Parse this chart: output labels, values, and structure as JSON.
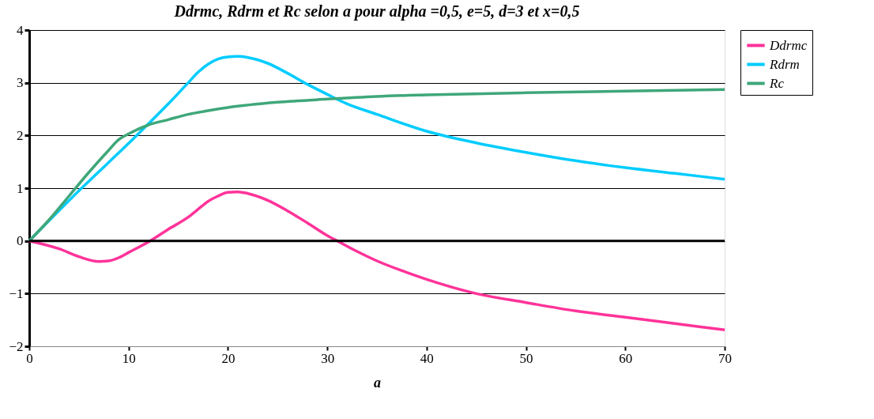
{
  "chart_data": {
    "type": "line",
    "title": "Ddrmc, Rdrm et Rc selon a pour alpha =0,5, e=5, d=3 et x=0,5",
    "xlabel": "a",
    "xlim": [
      0,
      70
    ],
    "xticks": [
      0,
      10,
      20,
      30,
      40,
      50,
      60,
      70
    ],
    "ylim": [
      -2,
      4
    ],
    "yticks": [
      -2,
      -1,
      0,
      1,
      2,
      3,
      4
    ],
    "grid": "y",
    "legend": "right",
    "series": [
      {
        "name": "Ddrmc",
        "color": "#ff3399",
        "x": [
          0,
          3,
          5,
          7,
          8,
          9,
          10,
          12,
          14,
          16,
          17,
          18,
          19,
          20,
          21,
          22,
          24,
          26,
          28,
          30,
          31,
          33,
          35,
          38,
          40,
          45,
          50,
          55,
          60,
          65,
          70
        ],
        "values": [
          0,
          -0.15,
          -0.3,
          -0.39,
          -0.38,
          -0.32,
          -0.22,
          -0.02,
          0.22,
          0.45,
          0.6,
          0.75,
          0.85,
          0.92,
          0.93,
          0.9,
          0.77,
          0.57,
          0.34,
          0.1,
          0,
          -0.2,
          -0.38,
          -0.6,
          -0.73,
          -1.0,
          -1.17,
          -1.33,
          -1.45,
          -1.57,
          -1.69
        ]
      },
      {
        "name": "Rdrm",
        "color": "#00ccff",
        "x": [
          0,
          5,
          10,
          14,
          16,
          17,
          18,
          19,
          20,
          21,
          22,
          24,
          26,
          28,
          30,
          32,
          35,
          40,
          45,
          50,
          55,
          60,
          65,
          70
        ],
        "values": [
          0,
          0.95,
          1.85,
          2.6,
          3.0,
          3.2,
          3.35,
          3.45,
          3.49,
          3.5,
          3.48,
          3.37,
          3.18,
          2.97,
          2.78,
          2.6,
          2.4,
          2.08,
          1.86,
          1.68,
          1.52,
          1.39,
          1.28,
          1.17
        ]
      },
      {
        "name": "Rc",
        "color": "#3fa77a",
        "x": [
          0,
          2,
          4,
          6,
          8,
          9,
          10,
          12,
          14,
          16,
          18,
          20,
          25,
          30,
          35,
          40,
          50,
          60,
          70
        ],
        "values": [
          0,
          0.4,
          0.85,
          1.3,
          1.72,
          1.92,
          2.03,
          2.2,
          2.3,
          2.4,
          2.47,
          2.53,
          2.63,
          2.69,
          2.74,
          2.77,
          2.81,
          2.84,
          2.87
        ]
      }
    ]
  }
}
